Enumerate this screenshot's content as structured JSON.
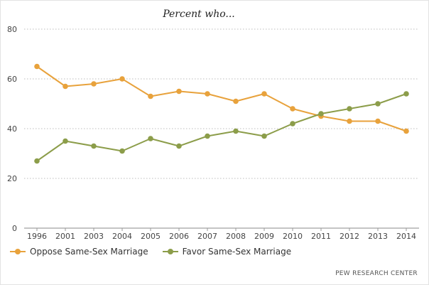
{
  "chart_data": {
    "type": "line",
    "title": "Percent who...",
    "categories": [
      "1996",
      "2001",
      "2003",
      "2004",
      "2005",
      "2006",
      "2007",
      "2008",
      "2009",
      "2010",
      "2011",
      "2012",
      "2013",
      "2014"
    ],
    "series": [
      {
        "name": "Oppose Same-Sex Marriage",
        "color": "#e8a23c",
        "values": [
          65,
          57,
          58,
          60,
          53,
          55,
          54,
          51,
          54,
          48,
          45,
          43,
          43,
          39
        ]
      },
      {
        "name": "Favor Same-Sex Marriage",
        "color": "#8c9d4a",
        "values": [
          27,
          35,
          33,
          31,
          36,
          33,
          37,
          39,
          37,
          42,
          46,
          48,
          50,
          54
        ]
      }
    ],
    "ylim": [
      0,
      80
    ],
    "yticks": [
      0,
      20,
      40,
      60,
      80
    ],
    "grid": true,
    "legend_position": "bottom-left"
  },
  "source": "PEW RESEARCH CENTER"
}
